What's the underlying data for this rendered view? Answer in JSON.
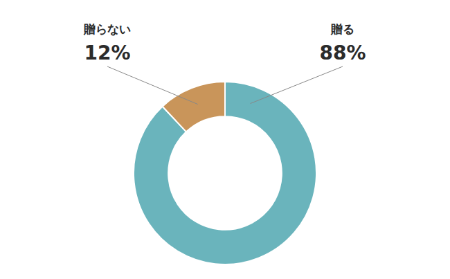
{
  "chart_data": {
    "type": "donut",
    "categories": [
      "贈る",
      "贈らない"
    ],
    "values": [
      88,
      12
    ],
    "value_labels": [
      "88%",
      "12%"
    ],
    "colors": [
      "#6ab4bc",
      "#c9955a"
    ],
    "data_labels": true
  }
}
